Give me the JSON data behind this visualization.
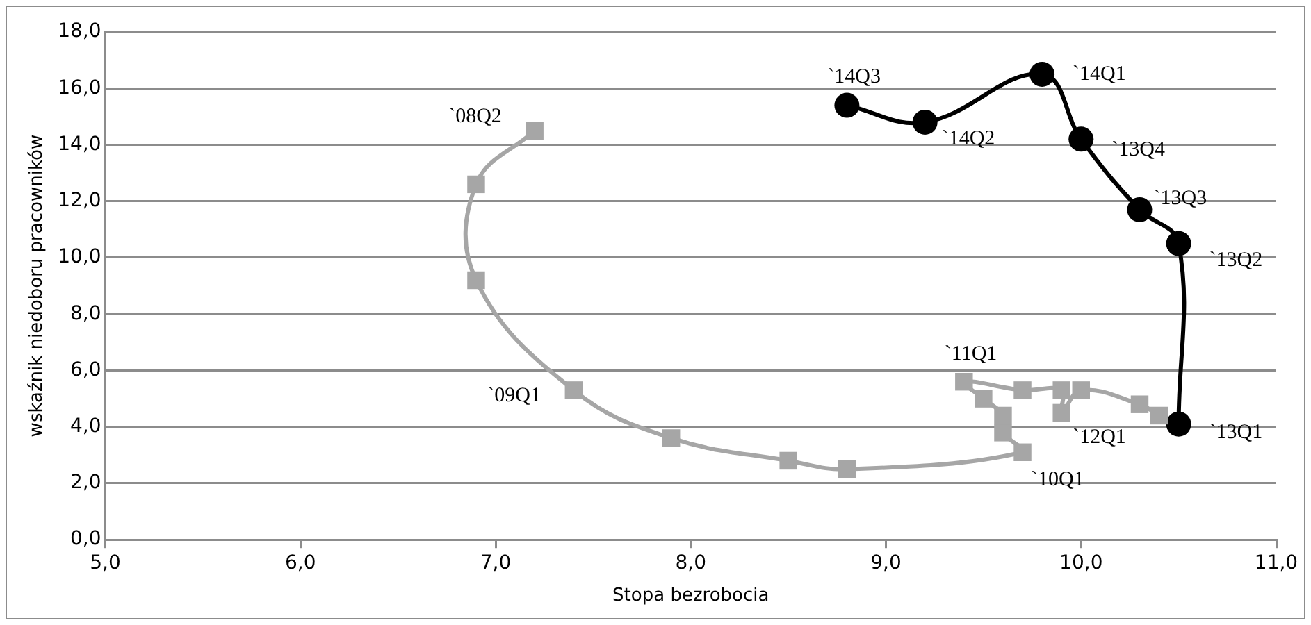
{
  "chart_data": {
    "type": "line",
    "xlabel": "Stopa bezrobocia",
    "ylabel": "wskaźnik niedoboru pracowników",
    "xlim": [
      5,
      11
    ],
    "xticks": [
      {
        "value": 5,
        "label": "5,0"
      },
      {
        "value": 6,
        "label": "6,0"
      },
      {
        "value": 7,
        "label": "7,0"
      },
      {
        "value": 8,
        "label": "8,0"
      },
      {
        "value": 9,
        "label": "9,0"
      },
      {
        "value": 10,
        "label": "10,0"
      },
      {
        "value": 11,
        "label": "11,0"
      }
    ],
    "ylim": [
      0,
      18
    ],
    "yticks": [
      {
        "value": 0,
        "label": "0,0"
      },
      {
        "value": 2,
        "label": "2,0"
      },
      {
        "value": 4,
        "label": "4,0"
      },
      {
        "value": 6,
        "label": "6,0"
      },
      {
        "value": 8,
        "label": "8,0"
      },
      {
        "value": 10,
        "label": "10,0"
      },
      {
        "value": 12,
        "label": "12,0"
      },
      {
        "value": 14,
        "label": "14,0"
      },
      {
        "value": 16,
        "label": "16,0"
      },
      {
        "value": 18,
        "label": "18,0"
      }
    ],
    "grid": "y",
    "legend": false,
    "series": [
      {
        "color": "#a6a6a6",
        "marker": "square",
        "x": [
          7.2,
          6.9,
          6.9,
          7.4,
          7.9,
          8.5,
          8.8,
          9.7,
          9.6,
          9.6,
          9.5,
          9.4,
          9.7,
          9.9,
          9.9,
          10.0,
          10.3,
          10.4
        ],
        "values": [
          14.5,
          12.6,
          9.2,
          5.3,
          3.6,
          2.8,
          2.5,
          3.1,
          3.8,
          4.4,
          5.0,
          5.6,
          5.3,
          5.3,
          4.5,
          5.3,
          4.8,
          4.4
        ]
      },
      {
        "color": "#000000",
        "marker": "circle",
        "x": [
          10.5,
          10.5,
          10.3,
          10.0,
          9.8,
          9.2,
          8.8
        ],
        "values": [
          4.1,
          10.5,
          11.7,
          14.2,
          16.5,
          14.8,
          15.4
        ]
      }
    ],
    "annotations": [
      {
        "text": "`08Q2",
        "x": 7.2,
        "y": 14.5
      },
      {
        "text": "`09Q1",
        "x": 7.4,
        "y": 5.3
      },
      {
        "text": "`10Q1",
        "x": 9.7,
        "y": 3.1
      },
      {
        "text": "`11Q1",
        "x": 9.4,
        "y": 5.6
      },
      {
        "text": "`12Q1",
        "x": 9.9,
        "y": 4.5
      },
      {
        "text": "`13Q1",
        "x": 10.5,
        "y": 4.1
      },
      {
        "text": "`13Q2",
        "x": 10.5,
        "y": 10.5
      },
      {
        "text": "`13Q3",
        "x": 10.3,
        "y": 11.7
      },
      {
        "text": "`13Q4",
        "x": 10.0,
        "y": 14.2
      },
      {
        "text": "`14Q1",
        "x": 9.8,
        "y": 16.5
      },
      {
        "text": "`14Q2",
        "x": 9.2,
        "y": 14.8
      },
      {
        "text": "`14Q3",
        "x": 8.8,
        "y": 15.4
      }
    ]
  }
}
